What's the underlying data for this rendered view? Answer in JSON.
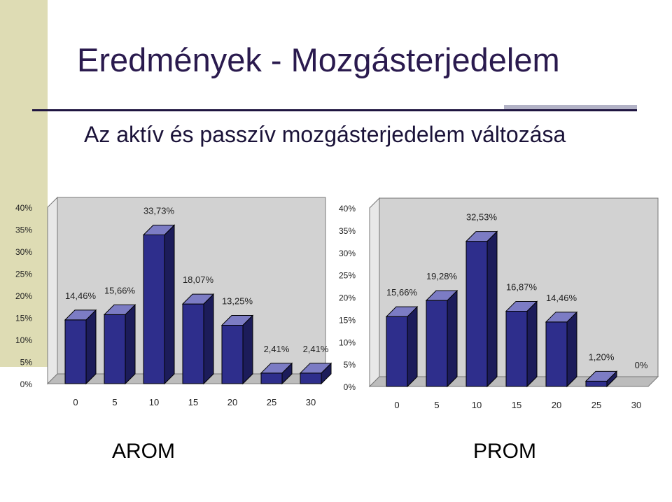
{
  "slide": {
    "title": "Eredmények - Mozgásterjedelem",
    "subtitle": "Az aktív és passzív mozgásterjedelem változása"
  },
  "colors": {
    "bar_front": "#2e2e8c",
    "bar_top": "#7c7cc4",
    "bar_side": "#1c1c5a",
    "back_wall": "#d2d2d2",
    "floor": "#bcbcbc"
  },
  "chart_data": [
    {
      "type": "bar",
      "caption": "AROM",
      "categories": [
        "0",
        "5",
        "10",
        "15",
        "20",
        "25",
        "30"
      ],
      "values": [
        14.46,
        15.66,
        33.73,
        18.07,
        13.25,
        2.41,
        2.41
      ],
      "value_labels": [
        "14,46%",
        "15,66%",
        "33,73%",
        "18,07%",
        "13,25%",
        "2,41%",
        "2,41%"
      ],
      "yticks": [
        "0%",
        "5%",
        "10%",
        "15%",
        "20%",
        "25%",
        "30%",
        "35%",
        "40%"
      ],
      "ylim": [
        0,
        40
      ],
      "grid": false,
      "legend": "none"
    },
    {
      "type": "bar",
      "caption": "PROM",
      "categories": [
        "0",
        "5",
        "10",
        "15",
        "20",
        "25",
        "30"
      ],
      "values": [
        15.66,
        19.28,
        32.53,
        16.87,
        14.46,
        1.2,
        0
      ],
      "value_labels": [
        "15,66%",
        "19,28%",
        "32,53%",
        "16,87%",
        "14,46%",
        "1,20%",
        "0%"
      ],
      "yticks": [
        "0%",
        "5%",
        "10%",
        "15%",
        "20%",
        "25%",
        "30%",
        "35%",
        "40%"
      ],
      "ylim": [
        0,
        40
      ],
      "grid": false,
      "legend": "none"
    }
  ]
}
